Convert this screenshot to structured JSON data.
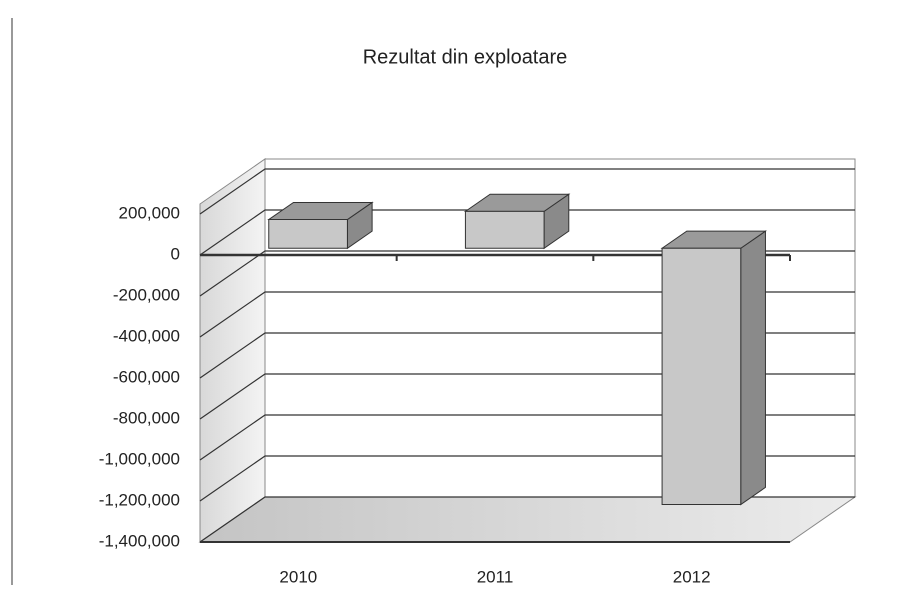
{
  "chart_data": {
    "type": "bar3d",
    "title": "Rezultat din exploatare",
    "categories": [
      "2010",
      "2011",
      "2012"
    ],
    "values": [
      140000,
      180000,
      -1250000
    ],
    "color": "#c8c8c8",
    "ylim": [
      -1400000,
      200000
    ],
    "yticks": [
      {
        "value": 200000,
        "label": "200,000"
      },
      0,
      {
        "value": -200000,
        "label": "-200,000"
      },
      {
        "value": -400000,
        "label": "-400,000"
      },
      {
        "value": -600000,
        "label": "-600,000"
      },
      {
        "value": -800000,
        "label": "-800,000"
      },
      {
        "value": -1000000,
        "label": "-1,000,000"
      },
      {
        "value": -1200000,
        "label": "-1,200,000"
      },
      {
        "value": -1400000,
        "label": "-1,400,000"
      }
    ],
    "grid": true
  }
}
